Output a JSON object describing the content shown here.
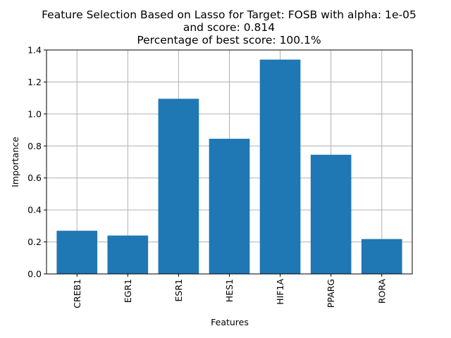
{
  "chart_data": {
    "type": "bar",
    "title_lines": [
      "Feature Selection Based on Lasso for Target: FOSB with alpha: 1e-05",
      "and score: 0.814",
      "Percentage of best score: 100.1%"
    ],
    "xlabel": "Features",
    "ylabel": "Importance",
    "categories": [
      "CREB1",
      "EGR1",
      "ESR1",
      "HES1",
      "HIF1A",
      "PPARG",
      "RORA"
    ],
    "values": [
      0.27,
      0.24,
      1.095,
      0.845,
      1.34,
      0.745,
      0.218
    ],
    "ylim": [
      0,
      1.4
    ],
    "yticks": [
      0.0,
      0.2,
      0.4,
      0.6,
      0.8,
      1.0,
      1.2,
      1.4
    ],
    "ytick_labels": [
      "0.0",
      "0.2",
      "0.4",
      "0.6",
      "0.8",
      "1.0",
      "1.2",
      "1.4"
    ],
    "grid": true,
    "bar_color": "#1f77b4",
    "grid_color": "#b0b0b0"
  }
}
